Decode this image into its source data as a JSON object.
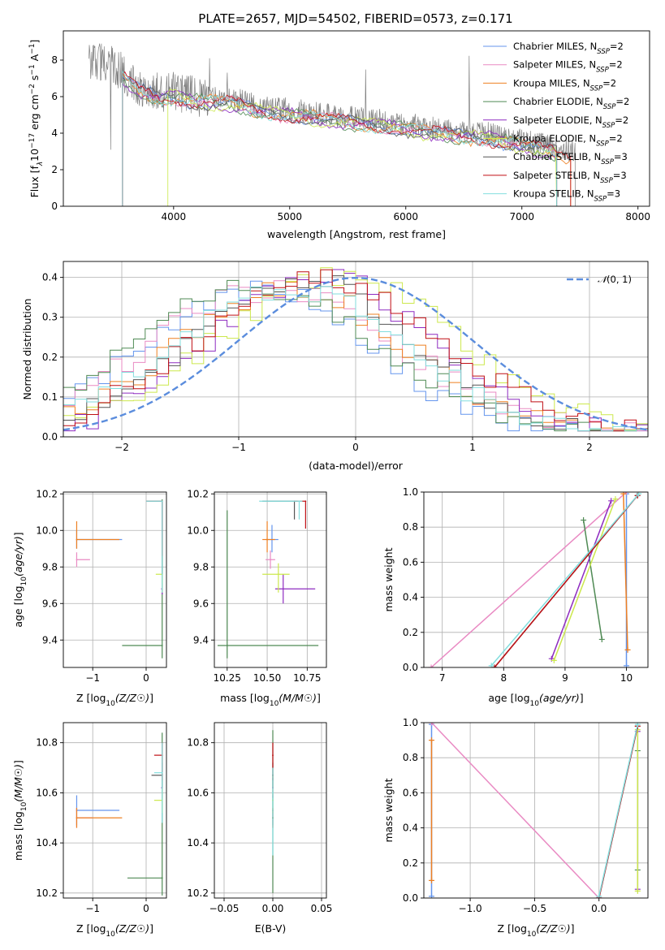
{
  "figure": {
    "title": "PLATE=2657, MJD=54502, FIBERID=0573, z=0.171",
    "model_legend_prefix": [
      "Chabrier MILES, N",
      "Salpeter MILES, N",
      "Kroupa MILES, N",
      "Chabrier ELODIE, N",
      "Salpeter ELODIE, N",
      "Kroupa ELODIE, N",
      "Chabrier STELIB, N",
      "Salpeter STELIB, N",
      "Kroupa STELIB, N"
    ],
    "model_legend_sub": "SSP",
    "model_legend_value": [
      "=2",
      "=2",
      "=2",
      "=2",
      "=2",
      "=2",
      "=3",
      "=3",
      "=3"
    ],
    "colors": [
      "#6495ed",
      "#e98ac3",
      "#ee8022",
      "#4f8a54",
      "#8e2bc0",
      "#cce84c",
      "#555555",
      "#c00f14",
      "#82dede"
    ],
    "data_color": "#808080",
    "gauss_color": "#5b8ddd"
  },
  "chart_data": [
    {
      "id": "spectrum",
      "type": "line",
      "title": "PLATE=2657, MJD=54502, FIBERID=0573, z=0.171",
      "xlabel": "wavelength [Angstrom, rest frame]",
      "ylabel_parts": [
        "Flux [f",
        "λ",
        "10",
        "−17",
        " erg cm",
        "−2",
        " s",
        "−1",
        " A",
        "−1",
        "]"
      ],
      "xlim": [
        3050,
        8100
      ],
      "ylim": [
        0,
        9.6
      ],
      "xticks": [
        4000,
        5000,
        6000,
        7000,
        8000
      ],
      "yticks": [
        0,
        2,
        4,
        6,
        8
      ],
      "data_range": [
        3270,
        7460
      ],
      "data_profile": {
        "x": [
          3270,
          3320,
          3500,
          3700,
          3900,
          4000,
          4200,
          4500,
          4800,
          5000,
          5300,
          5600,
          5900,
          6200,
          6500,
          6700,
          7000,
          7300,
          7460
        ],
        "y": [
          7.9,
          8.1,
          7.6,
          6.6,
          6.2,
          6.3,
          6.0,
          5.9,
          5.4,
          5.3,
          5.0,
          4.8,
          4.6,
          4.3,
          4.1,
          4.0,
          3.6,
          3.2,
          3.0
        ]
      },
      "model_ranges": [
        [
          3560,
          7300
        ],
        [
          3560,
          7300
        ],
        [
          3560,
          7420
        ],
        [
          3560,
          7300
        ],
        [
          3560,
          7300
        ],
        [
          3950,
          7300
        ],
        [
          3560,
          7300
        ],
        [
          3560,
          7420
        ],
        [
          3560,
          7300
        ]
      ],
      "model_peaks": [
        [
          3800,
          7.3
        ],
        [
          4200,
          6.8
        ],
        [
          4500,
          6.7
        ]
      ]
    },
    {
      "id": "residuals",
      "type": "histogram",
      "xlabel": "(data-model)/error",
      "ylabel": "Normed distribution",
      "xlim": [
        -2.5,
        2.5
      ],
      "ylim": [
        0,
        0.44
      ],
      "xticks": [
        -2,
        -1,
        0,
        1,
        2
      ],
      "yticks": [
        0.0,
        0.1,
        0.2,
        0.3,
        0.4
      ],
      "gauss_label_pre": "𝒩",
      "gauss_label_post": "(0, 1)",
      "bin_width": 0.1,
      "shapes": [
        {
          "mu": -0.7,
          "sigma": 1.0,
          "amp": 0.37
        },
        {
          "mu": -0.3,
          "sigma": 0.95,
          "amp": 0.4
        }
      ]
    },
    {
      "id": "age-vs-Z",
      "type": "errorbar",
      "xlabel": "Z [log10(Z/Z☉)]",
      "ylabel": "age  [log10(age/yr)]",
      "xlim": [
        -1.55,
        0.38
      ],
      "ylim": [
        9.25,
        10.21
      ],
      "xticks": [
        -1,
        0
      ],
      "yticks": [
        9.4,
        9.6,
        9.8,
        10.0,
        10.2
      ],
      "points": [
        {
          "s": 0,
          "x": -1.3,
          "y": 9.95,
          "ex": [
            0,
            0.85
          ],
          "ey": [
            0.05,
            0.05
          ]
        },
        {
          "s": 1,
          "x": -1.3,
          "y": 9.84,
          "ex": [
            0,
            0.25
          ],
          "ey": [
            0.04,
            0.04
          ]
        },
        {
          "s": 2,
          "x": -1.3,
          "y": 9.95,
          "ex": [
            0,
            0.8
          ],
          "ey": [
            0.05,
            0.1
          ]
        },
        {
          "s": 3,
          "x": 0.3,
          "y": 9.37,
          "ex": [
            0.75,
            0
          ],
          "ey": [
            0.07,
            0.8
          ]
        },
        {
          "s": 4,
          "x": 0.3,
          "y": 9.68,
          "ex": [
            0.02,
            0
          ],
          "ey": [
            0.03,
            0.03
          ]
        },
        {
          "s": 5,
          "x": 0.3,
          "y": 9.76,
          "ex": [
            0.12,
            0
          ],
          "ey": [
            0.1,
            0.2
          ]
        },
        {
          "s": 6,
          "x": 0.3,
          "y": 10.16,
          "ex": [
            0.3,
            0
          ],
          "ey": [
            0.4,
            0
          ]
        },
        {
          "s": 7,
          "x": 0.3,
          "y": 10.16,
          "ex": [
            0.3,
            0
          ],
          "ey": [
            0.3,
            0
          ]
        },
        {
          "s": 8,
          "x": 0.3,
          "y": 10.16,
          "ex": [
            0.3,
            0
          ],
          "ey": [
            0.5,
            0
          ]
        }
      ]
    },
    {
      "id": "age-vs-mass",
      "type": "errorbar",
      "xlabel": "mass [log10(M/M☉)]",
      "ylabel": "",
      "xlim": [
        10.17,
        10.87
      ],
      "ylim": [
        9.25,
        10.21
      ],
      "xticks": [
        10.25,
        10.5,
        10.75
      ],
      "xticklabels": [
        "10.25",
        "10.50",
        "10.75"
      ],
      "yticks": [
        9.4,
        9.6,
        9.8,
        10.0,
        10.2
      ],
      "points": [
        {
          "s": 0,
          "x": 10.53,
          "y": 9.95,
          "ex": [
            0.04,
            0.04
          ],
          "ey": [
            0.07,
            0.08
          ]
        },
        {
          "s": 1,
          "x": 10.52,
          "y": 9.84,
          "ex": [
            0.03,
            0.03
          ],
          "ey": [
            0.05,
            0.05
          ]
        },
        {
          "s": 2,
          "x": 10.5,
          "y": 9.95,
          "ex": [
            0.03,
            0.05
          ],
          "ey": [
            0.07,
            0.1
          ]
        },
        {
          "s": 3,
          "x": 10.25,
          "y": 9.37,
          "ex": [
            0.06,
            0.57
          ],
          "ey": [
            0.07,
            0.74
          ]
        },
        {
          "s": 4,
          "x": 10.6,
          "y": 9.68,
          "ex": [
            0.05,
            0.2
          ],
          "ey": [
            0.08,
            0.08
          ]
        },
        {
          "s": 5,
          "x": 10.57,
          "y": 9.76,
          "ex": [
            0.1,
            0.07
          ],
          "ey": [
            0.1,
            0.06
          ]
        },
        {
          "s": 6,
          "x": 10.67,
          "y": 10.16,
          "ex": [
            0.2,
            0.02
          ],
          "ey": [
            0.1,
            0
          ]
        },
        {
          "s": 7,
          "x": 10.74,
          "y": 10.16,
          "ex": [
            0.07,
            0.0
          ],
          "ey": [
            0.15,
            0
          ]
        },
        {
          "s": 8,
          "x": 10.7,
          "y": 10.16,
          "ex": [
            0.25,
            0.02
          ],
          "ey": [
            0.1,
            0
          ]
        }
      ]
    },
    {
      "id": "mass-weight-vs-age",
      "type": "line",
      "xlabel": "age  [log10(age/yr)]",
      "ylabel": "mass weight",
      "xlim": [
        6.7,
        10.35
      ],
      "ylim": [
        0,
        1
      ],
      "xticks": [
        7,
        8,
        9,
        10
      ],
      "yticks": [
        0.0,
        0.2,
        0.4,
        0.6,
        0.8,
        1.0
      ],
      "series": [
        {
          "s": 0,
          "x": [
            10.0,
            10.0
          ],
          "y": [
            0.01,
            0.99
          ]
        },
        {
          "s": 1,
          "x": [
            6.82,
            10.0
          ],
          "y": [
            0.0,
            1.0
          ]
        },
        {
          "s": 2,
          "x": [
            10.02,
            9.95
          ],
          "y": [
            0.1,
            0.99
          ]
        },
        {
          "s": 3,
          "x": [
            9.3,
            9.6
          ],
          "y": [
            0.84,
            0.16
          ]
        },
        {
          "s": 4,
          "x": [
            8.78,
            9.75
          ],
          "y": [
            0.05,
            0.95
          ]
        },
        {
          "s": 5,
          "x": [
            8.82,
            9.82
          ],
          "y": [
            0.04,
            0.96
          ]
        },
        {
          "s": 6,
          "x": [
            7.85,
            10.18
          ],
          "y": [
            0.0,
            0.98
          ]
        },
        {
          "s": 7,
          "x": [
            7.85,
            10.18
          ],
          "y": [
            0.0,
            0.98
          ]
        },
        {
          "s": 8,
          "x": [
            7.8,
            10.2
          ],
          "y": [
            0.01,
            0.99
          ]
        }
      ]
    },
    {
      "id": "mass-vs-Z",
      "type": "errorbar",
      "xlabel": "Z [log10(Z/Z☉)]",
      "ylabel": "mass [log10(M/M☉)]",
      "xlim": [
        -1.55,
        0.38
      ],
      "ylim": [
        10.18,
        10.88
      ],
      "xticks": [
        -1,
        0
      ],
      "yticks": [
        10.2,
        10.4,
        10.6,
        10.8
      ],
      "points": [
        {
          "s": 0,
          "x": -1.3,
          "y": 10.53,
          "ex": [
            0,
            0.8
          ],
          "ey": [
            0.06,
            0.06
          ]
        },
        {
          "s": 1,
          "x": -1.3,
          "y": 10.5,
          "ex": [
            0,
            0.3
          ],
          "ey": [
            0.04,
            0.04
          ]
        },
        {
          "s": 2,
          "x": -1.3,
          "y": 10.5,
          "ex": [
            0,
            0.85
          ],
          "ey": [
            0.04,
            0.04
          ]
        },
        {
          "s": 3,
          "x": 0.3,
          "y": 10.26,
          "ex": [
            0.65,
            0
          ],
          "ey": [
            0.07,
            0.58
          ]
        },
        {
          "s": 4,
          "x": 0.3,
          "y": 10.62,
          "ex": [
            0.02,
            0
          ],
          "ey": [
            0.04,
            0.04
          ]
        },
        {
          "s": 5,
          "x": 0.3,
          "y": 10.57,
          "ex": [
            0.15,
            0
          ],
          "ey": [
            0.05,
            0.1
          ]
        },
        {
          "s": 6,
          "x": 0.3,
          "y": 10.67,
          "ex": [
            0.2,
            0
          ],
          "ey": [
            0.05,
            0.05
          ]
        },
        {
          "s": 7,
          "x": 0.3,
          "y": 10.75,
          "ex": [
            0.15,
            0
          ],
          "ey": [
            0.1,
            0.05
          ]
        },
        {
          "s": 8,
          "x": 0.3,
          "y": 10.68,
          "ex": [
            0.15,
            0
          ],
          "ey": [
            0.2,
            0.12
          ]
        }
      ]
    },
    {
      "id": "mass-vs-EBV",
      "type": "errorbar",
      "xlabel": "E(B-V)",
      "ylabel": "",
      "xlim": [
        -0.06,
        0.055
      ],
      "ylim": [
        10.18,
        10.88
      ],
      "xticks": [
        -0.05,
        0.0,
        0.05
      ],
      "xticklabels": [
        "−0.05",
        "0.00",
        "0.05"
      ],
      "yticks": [
        10.2,
        10.4,
        10.6,
        10.8
      ],
      "points": [
        {
          "s": 0,
          "x": 0.0,
          "y": 10.53,
          "ey": [
            0.06,
            0.06
          ]
        },
        {
          "s": 1,
          "x": 0.0,
          "y": 10.5,
          "ey": [
            0.04,
            0.04
          ]
        },
        {
          "s": 2,
          "x": 0.0,
          "y": 10.5,
          "ey": [
            0.04,
            0.04
          ]
        },
        {
          "s": 3,
          "x": 0.0,
          "y": 10.5,
          "ey": [
            0.3,
            0.35
          ]
        },
        {
          "s": 4,
          "x": 0.0,
          "y": 10.62,
          "ey": [
            0.04,
            0.04
          ]
        },
        {
          "s": 5,
          "x": 0.0,
          "y": 10.57,
          "ey": [
            0.05,
            0.1
          ]
        },
        {
          "s": 6,
          "x": 0.0,
          "y": 10.67,
          "ey": [
            0.05,
            0.05
          ]
        },
        {
          "s": 7,
          "x": 0.0,
          "y": 10.75,
          "ey": [
            0.1,
            0.05
          ]
        },
        {
          "s": 8,
          "x": 0.0,
          "y": 10.6,
          "ey": [
            0.25,
            0.1
          ]
        }
      ]
    },
    {
      "id": "mass-weight-vs-Z",
      "type": "line",
      "xlabel": "Z [log10(Z/Z☉)]",
      "ylabel": "mass weight",
      "xlim": [
        -1.36,
        0.38
      ],
      "ylim": [
        0,
        1
      ],
      "xticks": [
        -1.0,
        -0.5,
        0.0
      ],
      "xticklabels": [
        "−1.0",
        "−0.5",
        "0.0"
      ],
      "yticks": [
        0.0,
        0.2,
        0.4,
        0.6,
        0.8,
        1.0
      ],
      "series": [
        {
          "s": 0,
          "x": [
            -1.3,
            -1.3
          ],
          "y": [
            0.01,
            0.99
          ]
        },
        {
          "s": 1,
          "x": [
            -1.3,
            0.0
          ],
          "y": [
            1.0,
            0.0
          ]
        },
        {
          "s": 2,
          "x": [
            -1.3,
            -1.3
          ],
          "y": [
            0.1,
            0.9
          ]
        },
        {
          "s": 3,
          "x": [
            0.3,
            0.3
          ],
          "y": [
            0.16,
            0.84
          ]
        },
        {
          "s": 4,
          "x": [
            0.3,
            0.3
          ],
          "y": [
            0.05,
            0.95
          ]
        },
        {
          "s": 5,
          "x": [
            0.3,
            0.3
          ],
          "y": [
            0.04,
            0.96
          ]
        },
        {
          "s": 6,
          "x": [
            0.0,
            0.3
          ],
          "y": [
            0.0,
            0.98
          ]
        },
        {
          "s": 7,
          "x": [
            0.0,
            0.3
          ],
          "y": [
            0.0,
            0.98
          ]
        },
        {
          "s": 8,
          "x": [
            0.0,
            0.3
          ],
          "y": [
            0.01,
            0.99
          ]
        }
      ]
    }
  ]
}
